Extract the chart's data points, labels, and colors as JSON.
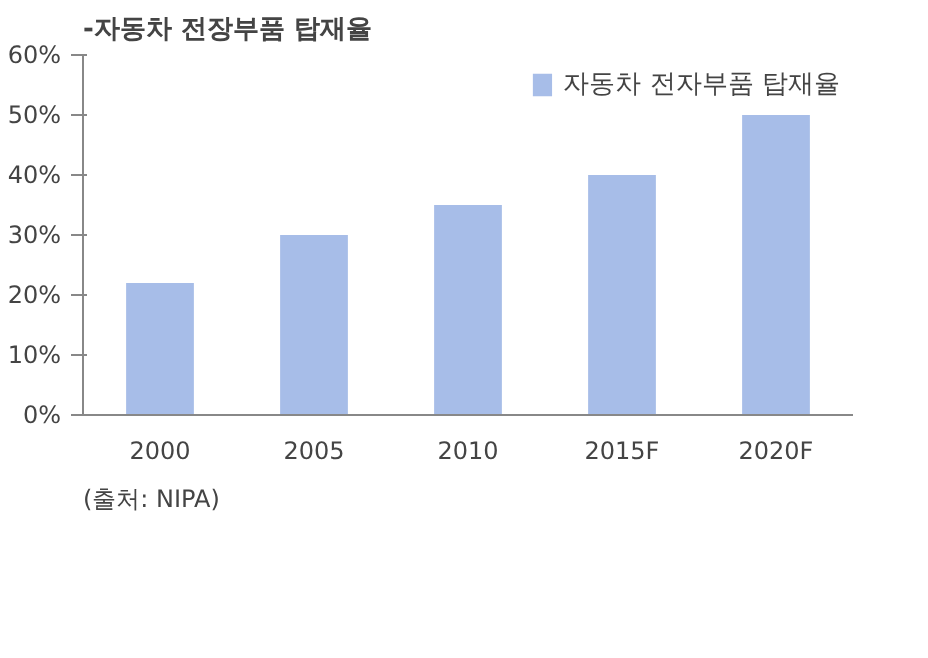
{
  "chart_data": {
    "type": "bar",
    "title": "-자동차 전장부품 탑재율",
    "categories": [
      "2000",
      "2005",
      "2010",
      "2015F",
      "2020F"
    ],
    "series": [
      {
        "name": "자동차 전자부품 탑재율",
        "color": "#a7bde8",
        "values": [
          22,
          30,
          35,
          40,
          50
        ]
      }
    ],
    "ylim": [
      0,
      60
    ],
    "yticks": [
      {
        "value": 0,
        "label": "0%"
      },
      {
        "value": 10,
        "label": "10%"
      },
      {
        "value": 20,
        "label": "20%"
      },
      {
        "value": 30,
        "label": "30%"
      },
      {
        "value": 40,
        "label": "40%"
      },
      {
        "value": 50,
        "label": "50%"
      },
      {
        "value": 60,
        "label": "60%"
      }
    ],
    "grid": false,
    "legend": "top right",
    "annotations": [
      "(출처: NIPA)"
    ]
  }
}
